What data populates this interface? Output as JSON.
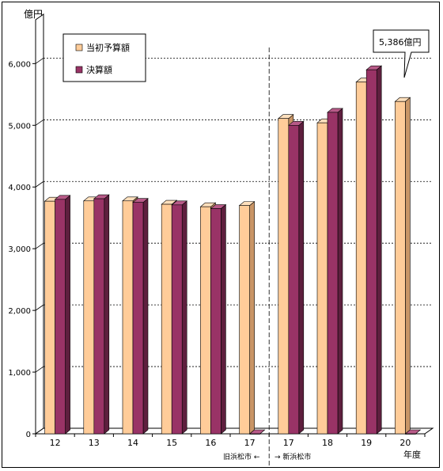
{
  "chart_data": {
    "type": "bar",
    "unit_label": "億円",
    "x_unit_label": "年度",
    "categories": [
      "12",
      "13",
      "14",
      "15",
      "16",
      "17",
      "17",
      "18",
      "19",
      "20"
    ],
    "series": [
      {
        "name": "当初予算額",
        "color": "#ffcc99",
        "values": [
          3770,
          3775,
          3775,
          3720,
          3680,
          3700,
          5110,
          5040,
          5700,
          5386
        ]
      },
      {
        "name": "決算額",
        "color": "#993366",
        "values": [
          3800,
          3810,
          3750,
          3710,
          3650,
          0,
          5000,
          5210,
          5900,
          0
        ]
      }
    ],
    "y_ticks": [
      "0",
      "1,000",
      "2,000",
      "3,000",
      "4,000",
      "5,000",
      "6,000"
    ],
    "ylim": [
      0,
      6800
    ],
    "grid": true,
    "legend_position": "top-left",
    "divider": {
      "left_label": "旧浜松市 ←",
      "right_label": "→ 新浜松市"
    },
    "callout": {
      "text": "5,386億円"
    }
  }
}
